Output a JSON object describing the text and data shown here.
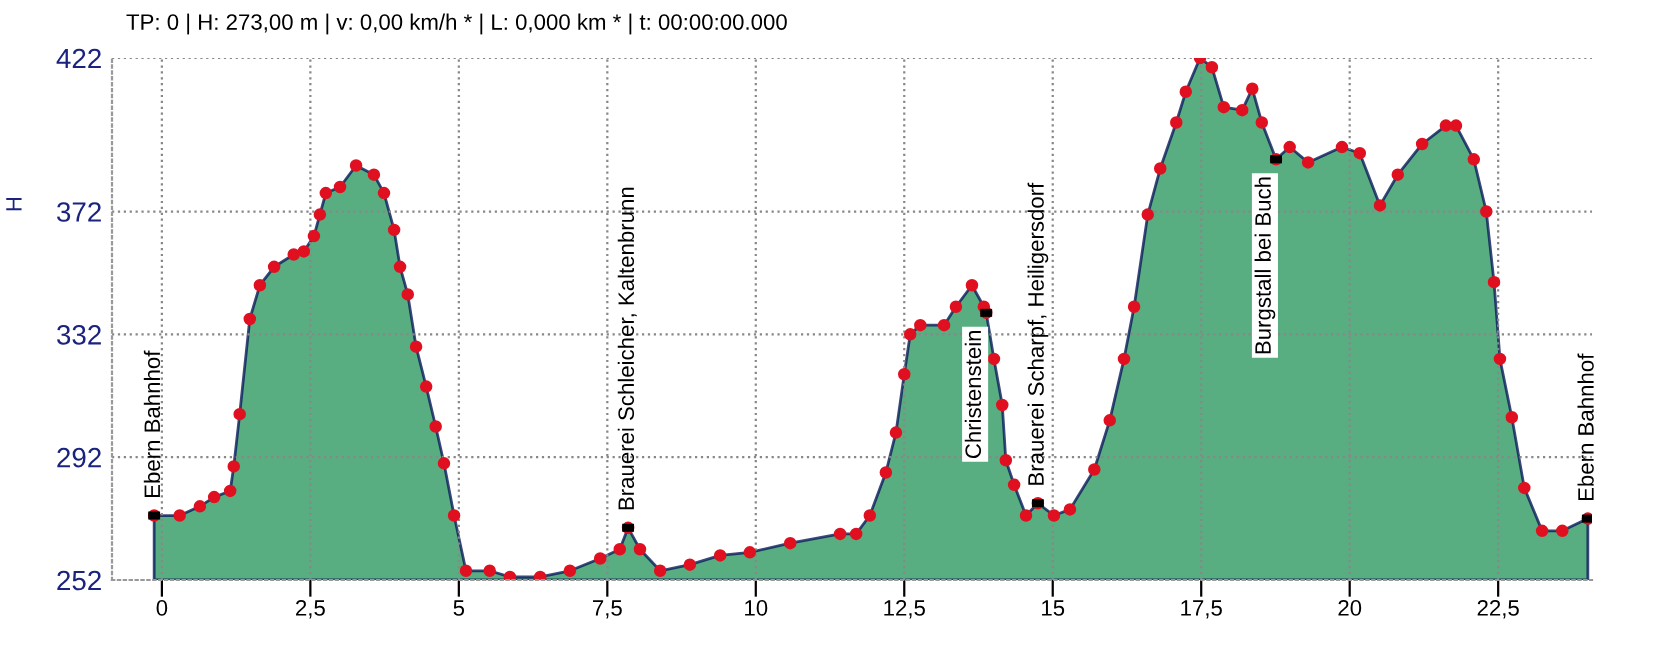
{
  "chart_data": {
    "type": "area",
    "title": "TP: 0 | H: 273,00 m | v: 0,00 km/h * | L: 0,000 km * | t: 00:00:00.000",
    "ylabel": "H",
    "series": [
      {
        "color": "#2e9a62",
        "x": [
          -0.13,
          0.3,
          0.64,
          0.88,
          1.15,
          1.21,
          1.31,
          1.48,
          1.65,
          1.89,
          2.22,
          2.39,
          2.56,
          2.66,
          2.76,
          3.0,
          3.27,
          3.57,
          3.74,
          3.91,
          4.01,
          4.14,
          4.28,
          4.45,
          4.61,
          4.75,
          4.92,
          5.12,
          5.52,
          5.86,
          6.37,
          6.87,
          7.38,
          7.71,
          7.85,
          8.05,
          8.39,
          8.89,
          9.4,
          9.9,
          10.58,
          11.42,
          11.69,
          11.92,
          12.19,
          12.36,
          12.5,
          12.6,
          12.77,
          13.17,
          13.37,
          13.64,
          13.84,
          13.88,
          14.01,
          14.15,
          14.21,
          14.35,
          14.55,
          14.75,
          15.02,
          15.29,
          15.7,
          15.96,
          16.2,
          16.37,
          16.6,
          16.81,
          17.08,
          17.24,
          17.48,
          17.68,
          17.88,
          18.19,
          18.36,
          18.52,
          18.76,
          18.99,
          19.3,
          19.87,
          20.17,
          20.51,
          20.81,
          21.22,
          21.62,
          21.79,
          22.09,
          22.3,
          22.43,
          22.53,
          22.73,
          22.94,
          23.24,
          23.58,
          24.01
        ],
        "values": [
          273,
          273,
          276,
          279,
          281,
          289,
          306,
          337,
          348,
          354,
          358,
          359,
          364,
          371,
          378,
          380,
          387,
          384,
          378,
          366,
          354,
          345,
          328,
          315,
          302,
          290,
          273,
          255,
          255,
          253,
          253,
          255,
          259,
          262,
          269,
          262,
          255,
          257,
          260,
          261,
          264,
          267,
          267,
          273,
          287,
          300,
          319,
          332,
          335,
          335,
          341,
          348,
          341,
          339,
          324,
          309,
          291,
          283,
          273,
          277,
          273,
          275,
          288,
          304,
          324,
          341,
          371,
          386,
          401,
          411,
          422,
          419,
          406,
          405,
          412,
          401,
          389,
          393,
          388,
          393,
          391,
          374,
          384,
          394,
          400,
          400,
          389,
          372,
          349,
          324,
          305,
          282,
          268,
          268,
          272
        ]
      }
    ],
    "xlim": [
      -0.84,
      24.08
    ],
    "ylim": [
      252,
      422
    ],
    "xticks": [
      0,
      {
        "value": 2.5,
        "label": "2,5"
      },
      5,
      {
        "value": 7.5,
        "label": "7,5"
      },
      10,
      {
        "value": 12.5,
        "label": "12,5"
      },
      15,
      {
        "value": 17.5,
        "label": "17,5"
      },
      20,
      {
        "value": 22.5,
        "label": "22,5"
      }
    ],
    "yticks": [
      252,
      292,
      332,
      372,
      422
    ],
    "grid": true,
    "marker": "circle",
    "line_style": "solid",
    "annotations": [
      {
        "text": "Ebern Bahnhof",
        "x": -0.13,
        "y": 273
      },
      {
        "text": "Brauerei Schleicher, Kaltenbrunn",
        "x": 7.85,
        "y": 269
      },
      {
        "text": "Christenstein",
        "x": 13.88,
        "y": 339
      },
      {
        "text": "Brauerei Scharpf, Heiligersdorf",
        "x": 14.75,
        "y": 277
      },
      {
        "text": "Burgstall bei Buch",
        "x": 18.76,
        "y": 389
      },
      {
        "text": "Ebern Bahnhof",
        "x": 24.01,
        "y": 272
      }
    ]
  }
}
